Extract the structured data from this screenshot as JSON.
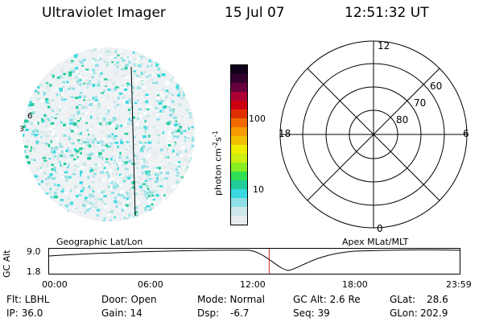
{
  "header": {
    "title": "Ultraviolet Imager",
    "date": "15 Jul 07",
    "time": "12:51:32 UT"
  },
  "colorbar": {
    "label": "photon cm",
    "label_exp": "-2",
    "label_unit": "s",
    "label_unit_exp": "-1",
    "ticks": [
      "100",
      "10"
    ],
    "scale": "log",
    "colors": [
      "#e9ecef",
      "#cde8ea",
      "#8fe0e6",
      "#3ad9e0",
      "#22cc99",
      "#33e055",
      "#88ee22",
      "#ccee11",
      "#eeee00",
      "#f3c000",
      "#f79a00",
      "#f06a00",
      "#e03000",
      "#cc0011",
      "#aa0033",
      "#66003b",
      "#33002e",
      "#10001a"
    ]
  },
  "polar_plot": {
    "mlt_labels": [
      "12",
      "18",
      "6",
      "0"
    ],
    "lat_labels": [
      "60",
      "70",
      "80"
    ]
  },
  "timeline": {
    "y_label": "GC Alt",
    "y_ticks": [
      "9.0",
      "1.8"
    ],
    "left_label": "Geographic Lat/Lon",
    "right_label": "Apex MLat/MLT",
    "x_ticks": [
      "00:00",
      "06:00",
      "12:00",
      "18:00",
      "23:59"
    ],
    "current_time_fraction": 0.536
  },
  "info": {
    "flt": "Flt: LBHL",
    "door": "Door: Open",
    "mode": "Mode: Normal",
    "gc_alt": "GC Alt: 2.6 Re",
    "glat_label": "GLat:",
    "glat_value": "28.6",
    "ip": "IP: 36.0",
    "gain": "Gain: 14",
    "dsp_label": "Dsp:",
    "dsp_value": "-6.7",
    "seq": "Seq: 39",
    "glon_label": "GLon:",
    "glon_value": "202.9"
  },
  "globe_marks": {
    "left_label_1": "6",
    "left_label_2": "3"
  }
}
